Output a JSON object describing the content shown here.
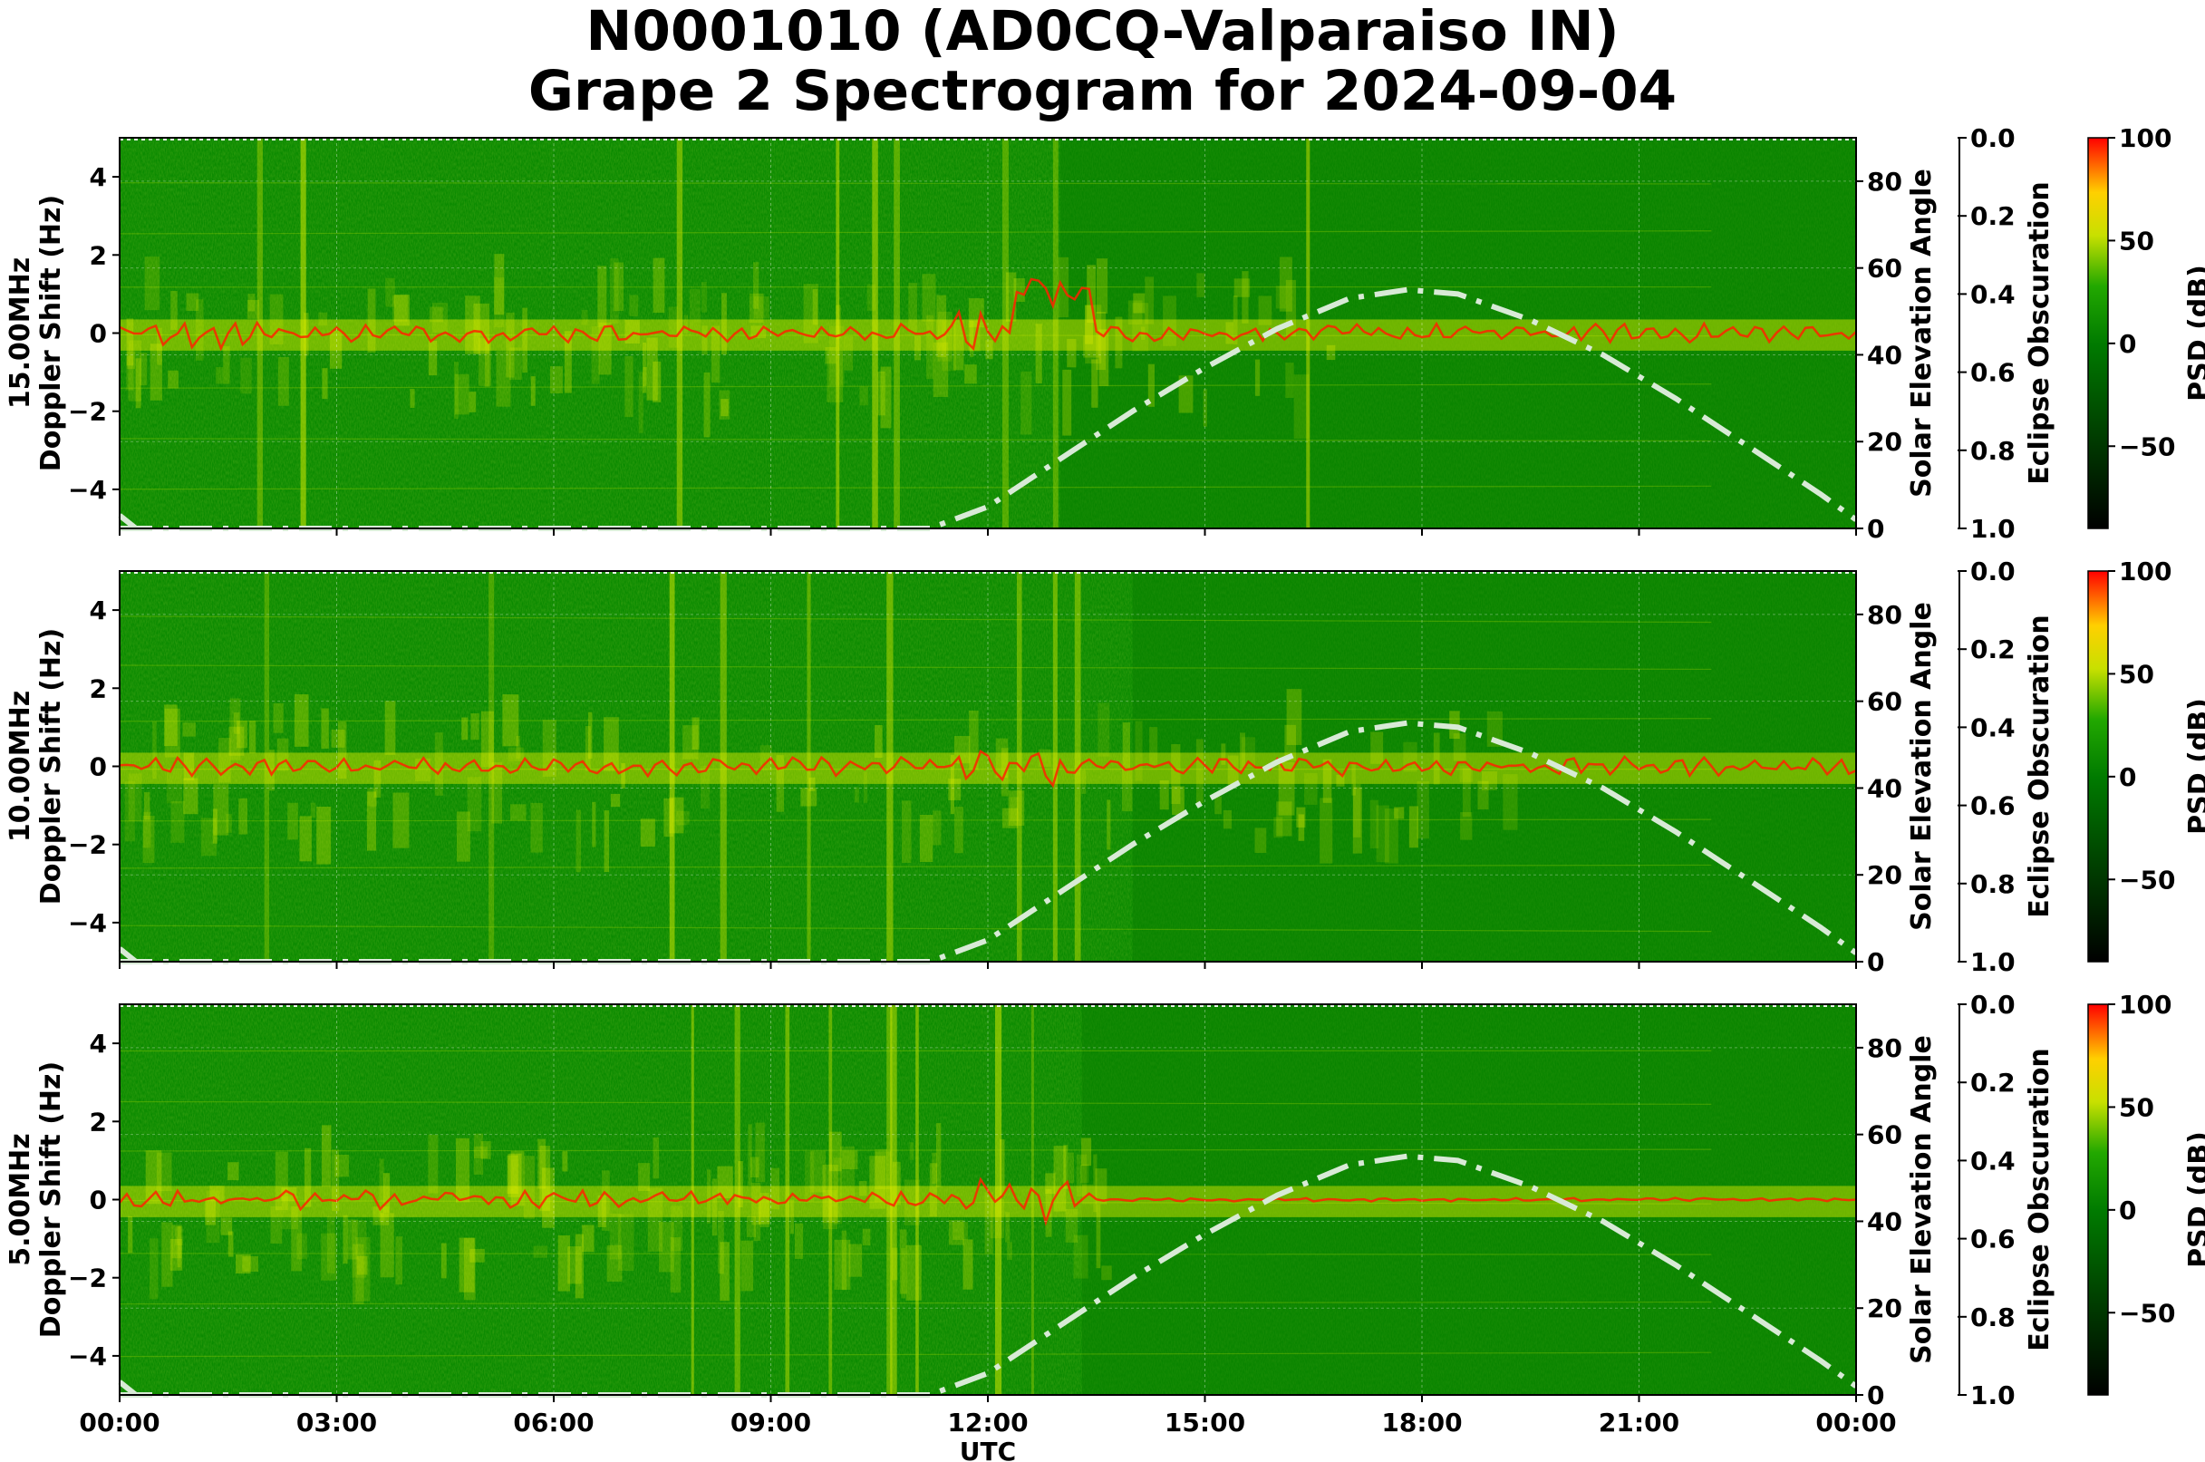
{
  "title_line1": "N0001010 (AD0CQ-Valparaiso IN)",
  "title_line2": "Grape 2 Spectrogram for 2024-09-04",
  "colors": {
    "background_green": "#0a8a00",
    "signal_yellow": "#e6f000",
    "trace_red": "#ff2200",
    "elevation_curve": "#d8ead6",
    "colorbar_low": "#000000",
    "colorbar_mid": "#008000",
    "colorbar_high": "#ff0000"
  },
  "chart_data": {
    "type": "heatmap",
    "x_label": "UTC",
    "x_range_hours": [
      0,
      24
    ],
    "x_ticks": [
      "00:00",
      "03:00",
      "06:00",
      "09:00",
      "12:00",
      "15:00",
      "18:00",
      "21:00",
      "00:00"
    ],
    "y_ticks": [
      "−4",
      "−2",
      "0",
      "2",
      "4"
    ],
    "y_range_hz": [
      -5,
      5
    ],
    "elevation_axis": {
      "label": "Solar Elevation Angle",
      "range": [
        0,
        90
      ],
      "ticks": [
        "0",
        "20",
        "40",
        "60",
        "80"
      ]
    },
    "eclipse_axis": {
      "label": "Eclipse Obscuration",
      "range": [
        1.0,
        0.0
      ],
      "ticks": [
        "0.0",
        "0.2",
        "0.4",
        "0.6",
        "0.8",
        "1.0"
      ]
    },
    "colorbar": {
      "label": "PSD (dB)",
      "range": [
        -90,
        100
      ],
      "ticks": [
        "100",
        "50",
        "0",
        "−50"
      ]
    },
    "solar_elevation": {
      "utc_hours": [
        0,
        11.2,
        12,
        13,
        14,
        15,
        16,
        17,
        17.8,
        18.5,
        19.5,
        20.5,
        21.5,
        22.5,
        23.5,
        24
      ],
      "degrees": [
        0,
        0,
        5,
        16,
        27,
        37,
        46,
        53,
        55,
        54,
        48,
        40,
        30,
        19,
        8,
        2
      ]
    },
    "panels": [
      {
        "ylabel_line1": "15.00MHz",
        "ylabel_line2": "Doppler Shift (Hz)"
      },
      {
        "ylabel_line1": "10.00MHz",
        "ylabel_line2": "Doppler Shift (Hz)"
      },
      {
        "ylabel_line1": "5.00MHz",
        "ylabel_line2": "Doppler Shift (Hz)"
      }
    ]
  }
}
